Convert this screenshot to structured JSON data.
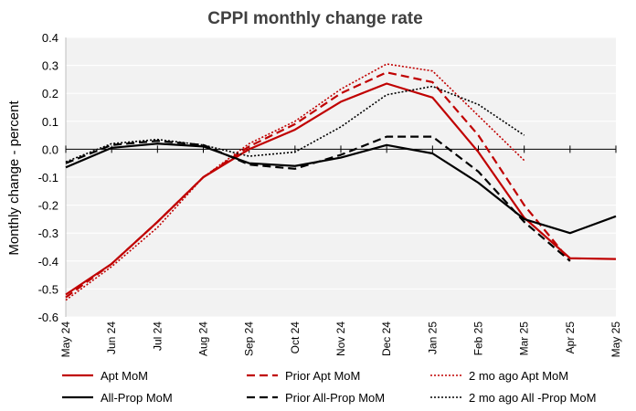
{
  "chart_data": {
    "type": "line",
    "title": "CPPI monthly change rate",
    "ylabel": "Monthly change - percent",
    "xlabel": "",
    "ylim": [
      -0.6,
      0.4
    ],
    "y_ticks": [
      "0.4",
      "0.3",
      "0.2",
      "0.1",
      "0.0",
      "-0.1",
      "-0.2",
      "-0.3",
      "-0.4",
      "-0.5",
      "-0.6"
    ],
    "categories": [
      "May 24",
      "Jun 24",
      "Jul 24",
      "Aug 24",
      "Sep 24",
      "Oct 24",
      "Nov 24",
      "Dec 24",
      "Jan 25",
      "Feb 25",
      "Mar 25",
      "Apr 25",
      "May 25"
    ],
    "grid": "horizontal",
    "plot_background": "#f2f2f2",
    "legend_position": "bottom",
    "series": [
      {
        "name": "Apt MoM",
        "color": "#c00000",
        "dash": "solid",
        "values": [
          -0.52,
          -0.41,
          -0.26,
          -0.1,
          0.0,
          0.07,
          0.17,
          0.235,
          0.185,
          -0.01,
          -0.245,
          -0.39,
          -0.393
        ]
      },
      {
        "name": "Prior Apt MoM",
        "color": "#c00000",
        "dash": "dashed",
        "values": [
          -0.53,
          -0.41,
          -0.26,
          -0.1,
          0.01,
          0.09,
          0.2,
          0.275,
          0.24,
          0.05,
          -0.2,
          -0.4,
          null
        ]
      },
      {
        "name": "2 mo ago Apt MoM",
        "color": "#c00000",
        "dash": "dotted",
        "values": [
          -0.54,
          -0.42,
          -0.28,
          -0.1,
          0.02,
          0.1,
          0.215,
          0.305,
          0.28,
          0.12,
          -0.04,
          null,
          null
        ]
      },
      {
        "name": "All-Prop MoM",
        "color": "#000000",
        "dash": "solid",
        "values": [
          -0.065,
          0.005,
          0.02,
          0.01,
          -0.05,
          -0.06,
          -0.03,
          0.015,
          -0.015,
          -0.12,
          -0.25,
          -0.3,
          -0.24
        ]
      },
      {
        "name": "Prior All-Prop MoM",
        "color": "#000000",
        "dash": "dashed",
        "values": [
          -0.05,
          0.015,
          0.03,
          0.015,
          -0.055,
          -0.07,
          -0.02,
          0.045,
          0.045,
          -0.08,
          -0.26,
          -0.4,
          null
        ]
      },
      {
        "name": "2 mo ago All -Prop MoM",
        "color": "#000000",
        "dash": "dotted",
        "values": [
          -0.045,
          0.02,
          0.035,
          0.015,
          -0.025,
          -0.01,
          0.08,
          0.195,
          0.225,
          0.16,
          0.05,
          null,
          null
        ]
      }
    ]
  }
}
